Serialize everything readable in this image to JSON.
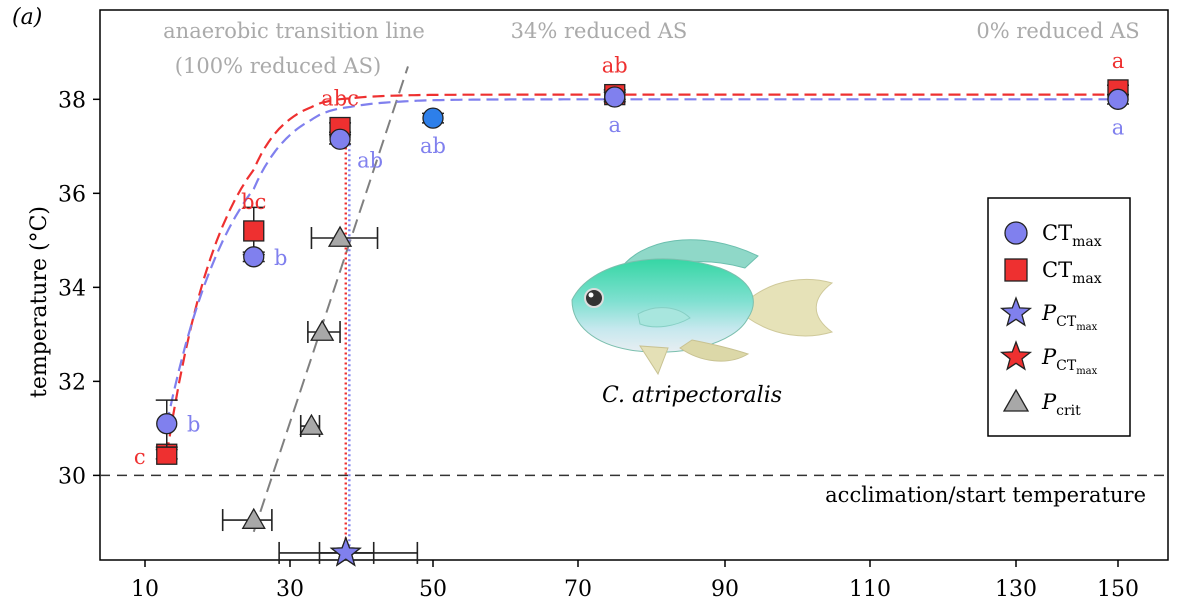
{
  "chart_data": {
    "type": "scatter",
    "panel_label": "(a)",
    "ylabel": "temperature (°C)",
    "xlabel": "",
    "x_ticks": [
      10,
      30,
      50,
      70,
      90,
      110,
      130,
      150
    ],
    "y_ticks": [
      30,
      32,
      34,
      36,
      38
    ],
    "xlim": [
      0,
      160
    ],
    "ylim": [
      28.2,
      39.9
    ],
    "grid": false,
    "reference_line": {
      "y": 30,
      "label": "acclimation/start temperature"
    },
    "annotations": {
      "anaerobic_line_1": "anaerobic transition line",
      "anaerobic_line_2": "(100% reduced AS)",
      "reduced_34": "34% reduced AS",
      "reduced_0": "0% reduced AS",
      "species": "C. atripectoralis"
    },
    "legend": {
      "position": "right",
      "entries": [
        {
          "marker": "circle",
          "color": "#8080ee",
          "base": "CT",
          "sub": "max"
        },
        {
          "marker": "square",
          "color": "#ee3030",
          "base": "CT",
          "sub": "max"
        },
        {
          "marker": "star",
          "color": "#8080ee",
          "base": "P",
          "sub": "CT",
          "subsub": "max"
        },
        {
          "marker": "star",
          "color": "#ee3030",
          "base": "P",
          "sub": "CT",
          "subsub": "max"
        },
        {
          "marker": "triangle",
          "color": "#a8a8a8",
          "base": "P",
          "sub": "crit"
        }
      ]
    },
    "series": [
      {
        "marker": "circle",
        "color": "#8080ee",
        "points": [
          {
            "x": 18,
            "y": 31.1,
            "err": 0.5,
            "label": "b"
          },
          {
            "x": 25,
            "y": 34.65,
            "err": 0.1,
            "label": "b"
          },
          {
            "x": 37.5,
            "y": 37.15,
            "err": 0.1,
            "label": "ab"
          },
          {
            "x": 50,
            "y": 37.6,
            "err": 0.1,
            "label": "ab",
            "color": "#2d7fea"
          },
          {
            "x": 75,
            "y": 38.05,
            "err": 0.1,
            "label": "a"
          },
          {
            "x": 150,
            "y": 38.0,
            "err": 0.1,
            "label": "a"
          }
        ]
      },
      {
        "marker": "square",
        "color": "#ee3030",
        "points": [
          {
            "x": 18,
            "y": 30.45,
            "err": 0.1,
            "label": "c"
          },
          {
            "x": 25,
            "y": 35.2,
            "err": 0.5,
            "label": "bc"
          },
          {
            "x": 37.5,
            "y": 37.4,
            "err": 0.1,
            "label": "abc"
          },
          {
            "x": 75,
            "y": 38.1,
            "err": 0.1,
            "label": "ab"
          },
          {
            "x": 150,
            "y": 38.2,
            "err": 0.1,
            "label": "a"
          }
        ]
      },
      {
        "marker": "triangle",
        "color": "#a8a8a8",
        "points": [
          {
            "x": 25,
            "y": 29.05,
            "xerr": 2.5
          },
          {
            "x": 33,
            "y": 31.05,
            "xerr": 1.5
          },
          {
            "x": 35,
            "y": 33.05,
            "xerr": 2.5
          },
          {
            "x": 37.5,
            "y": 35.05,
            "xerr": 4.5
          }
        ]
      },
      {
        "marker": "star",
        "color": "#ee3030",
        "points": [
          {
            "x": 38,
            "y": 28.35,
            "xerr": 9.5
          }
        ]
      },
      {
        "marker": "star",
        "color": "#8080ee",
        "points": [
          {
            "x": 38,
            "y": 28.35,
            "xerr": 3.5
          }
        ]
      }
    ],
    "fit_curves": [
      {
        "color": "#ee3030",
        "style": "dashed",
        "plateau": 38.1,
        "start_x": 18,
        "start_y": 30.45,
        "k": 0.14
      },
      {
        "color": "#8080ee",
        "style": "dashed",
        "plateau": 38.0,
        "start_x": 18,
        "start_y": 31.1,
        "k": 0.115
      }
    ],
    "vertical_lines": [
      {
        "x": 38,
        "y_top": 37.4,
        "color": "#ee3030",
        "style": "dotted"
      },
      {
        "x": 38.3,
        "y_top": 37.15,
        "color": "#8080ee",
        "style": "dotted"
      }
    ],
    "anaerobic_line": {
      "x1": 25,
      "y1": 28.8,
      "x2": 46,
      "y2": 38.7,
      "color": "#808080"
    }
  }
}
